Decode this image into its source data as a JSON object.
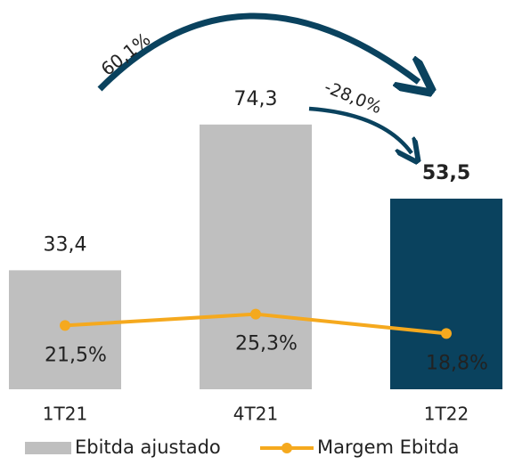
{
  "chart_data": {
    "type": "bar",
    "categories": [
      "1T21",
      "4T21",
      "1T22"
    ],
    "series": [
      {
        "name": "Ebitda ajustado",
        "type": "bar",
        "colors": [
          "#bfbfbf",
          "#bfbfbf",
          "#0a425e"
        ],
        "values": [
          33.4,
          74.3,
          53.5
        ],
        "value_labels": [
          "33,4",
          "74,3",
          "53,5"
        ]
      },
      {
        "name": "Margem Ebitda",
        "type": "line",
        "axis": "y2",
        "color": "#f5a91e",
        "values": [
          21.5,
          25.3,
          18.8
        ],
        "value_labels": [
          "21,5%",
          "25,3%",
          "18,8%"
        ]
      }
    ],
    "ylim": [
      0,
      100
    ],
    "y2lim": [
      0,
      120
    ],
    "annotations": [
      "60,1%",
      "-28,0%"
    ]
  }
}
